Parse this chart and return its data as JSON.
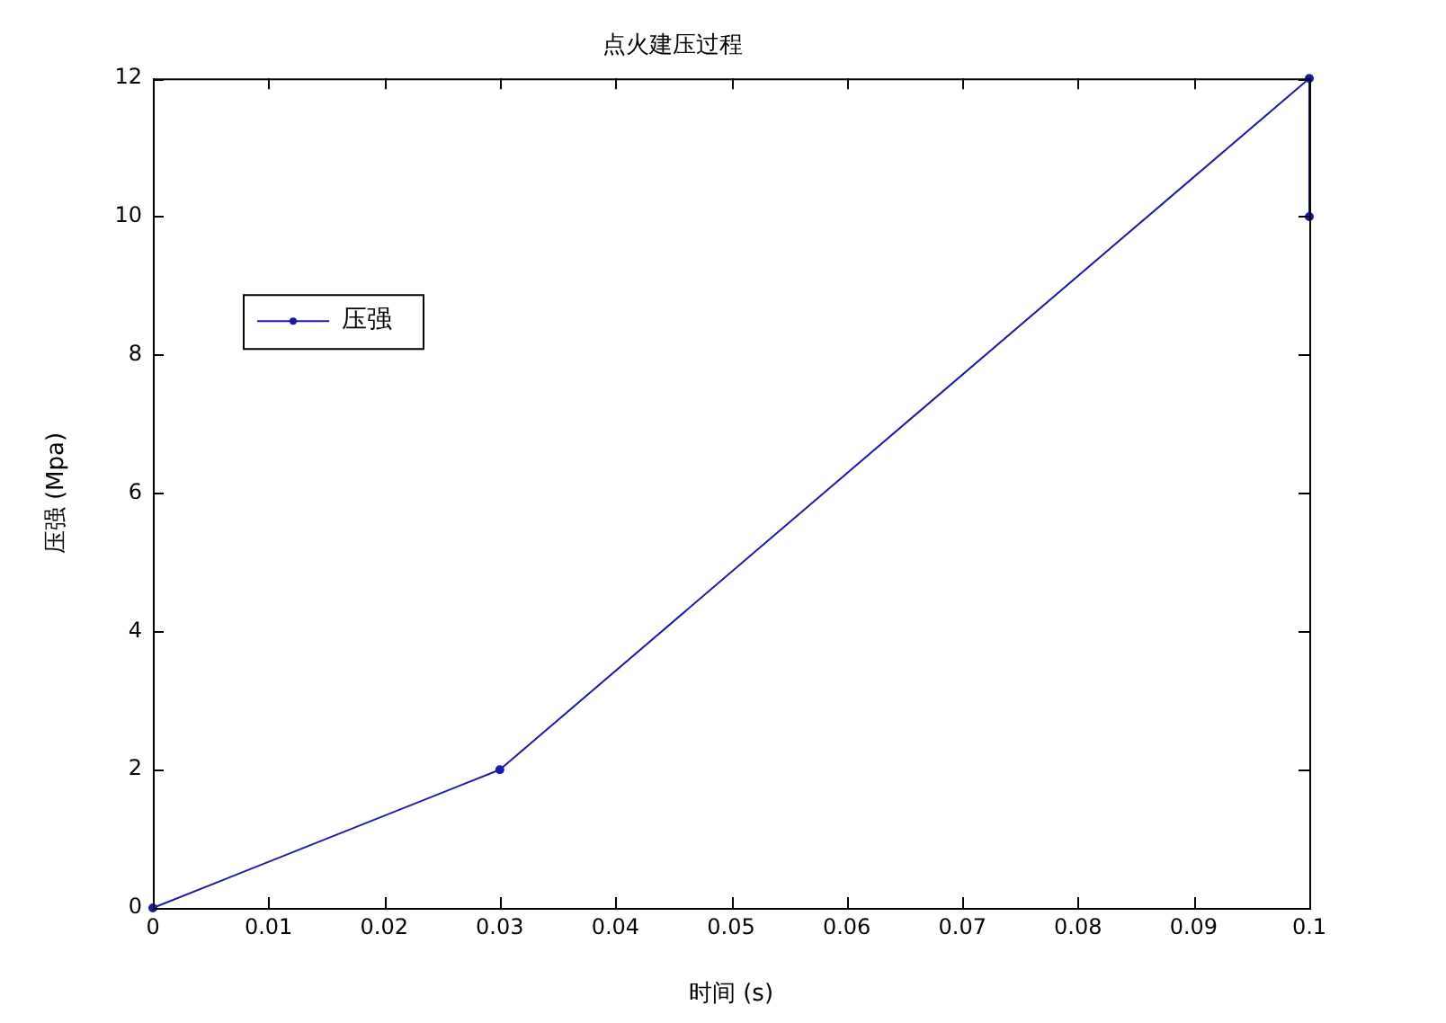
{
  "chart_data": {
    "type": "line",
    "title": "点火建压过程",
    "xlabel": "时间 (s)",
    "ylabel": "压强 (Mpa)",
    "series": [
      {
        "name": "压强",
        "color": "#1a1aa8",
        "x": [
          0,
          0.03,
          0.1,
          0.1
        ],
        "values": [
          0,
          2,
          12,
          10
        ]
      }
    ],
    "xlim": [
      0,
      0.1
    ],
    "xticks": [
      0,
      0.01,
      0.02,
      0.03,
      0.04,
      0.05,
      0.06,
      0.07,
      0.08,
      0.09,
      0.1
    ],
    "ylim": [
      0,
      12
    ],
    "yticks": [
      0,
      2,
      4,
      6,
      8,
      10,
      12
    ],
    "grid": false,
    "legend": "top left",
    "marker": "circle",
    "line_style": "solid"
  }
}
